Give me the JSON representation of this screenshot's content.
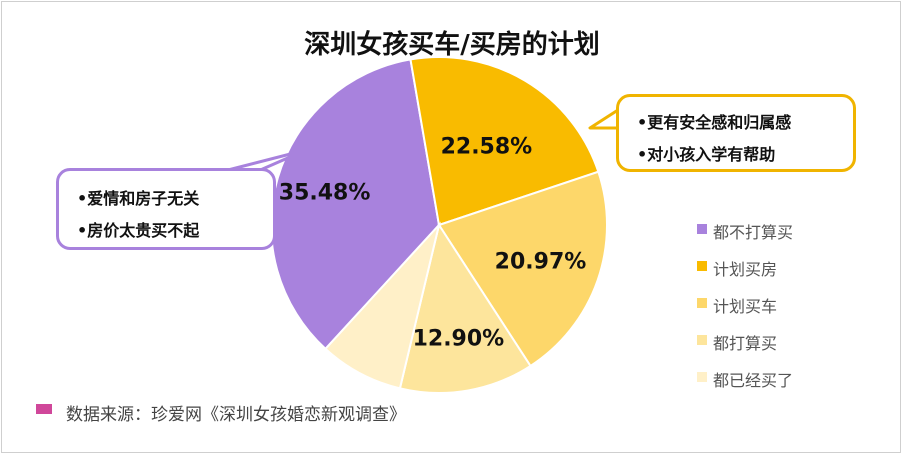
{
  "chart_data": {
    "type": "pie",
    "title": "深圳女孩买车/买房的计划",
    "categories": [
      "都不打算买",
      "计划买房",
      "计划买车",
      "都打算买",
      "都已经买了"
    ],
    "values": [
      35.48,
      22.58,
      20.97,
      12.9,
      8.07
    ],
    "value_labels": [
      "35.48%",
      "22.58%",
      "20.97%",
      "12.90%",
      ""
    ],
    "colors": [
      "#a882dd",
      "#f9bb00",
      "#fdd76a",
      "#fde59c",
      "#fff0c8"
    ],
    "legend_position": "right"
  },
  "callouts": {
    "left": {
      "lines": [
        "•爱情和房子无关",
        "•房价太贵买不起"
      ],
      "color": "#a882dd"
    },
    "right": {
      "lines": [
        "•更有安全感和归属感",
        "•对小孩入学有帮助"
      ],
      "color": "#f0b400"
    }
  },
  "source": {
    "text": "数据来源：珍爱网《深圳女孩婚恋新观调查》",
    "color": "#d0479a"
  }
}
